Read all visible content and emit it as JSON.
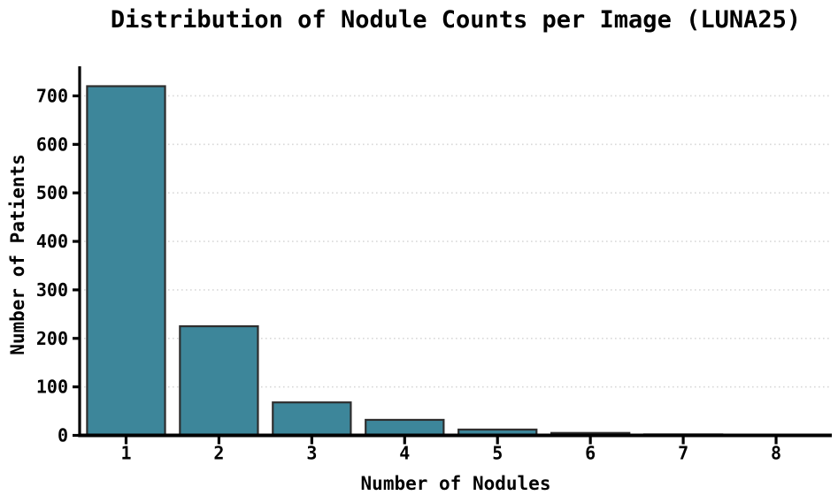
{
  "chart_data": {
    "type": "bar",
    "title": "Distribution of Nodule Counts per Image (LUNA25)",
    "xlabel": "Number of Nodules",
    "ylabel": "Number of Patients",
    "categories": [
      "1",
      "2",
      "3",
      "4",
      "5",
      "6",
      "7",
      "8"
    ],
    "values": [
      720,
      225,
      68,
      32,
      12,
      5,
      2,
      1
    ],
    "yticks": [
      0,
      100,
      200,
      300,
      400,
      500,
      600,
      700
    ],
    "ylim": [
      0,
      761
    ],
    "bar_width_frac": 0.84,
    "grid": "horizontal-dotted",
    "legend": "none",
    "colors": {
      "bar_fill": "#3d869a",
      "bar_edge": "#2e2e2e",
      "grid": "#d9d9d9",
      "axis": "#000000",
      "text": "#000000",
      "background": "#ffffff"
    }
  }
}
